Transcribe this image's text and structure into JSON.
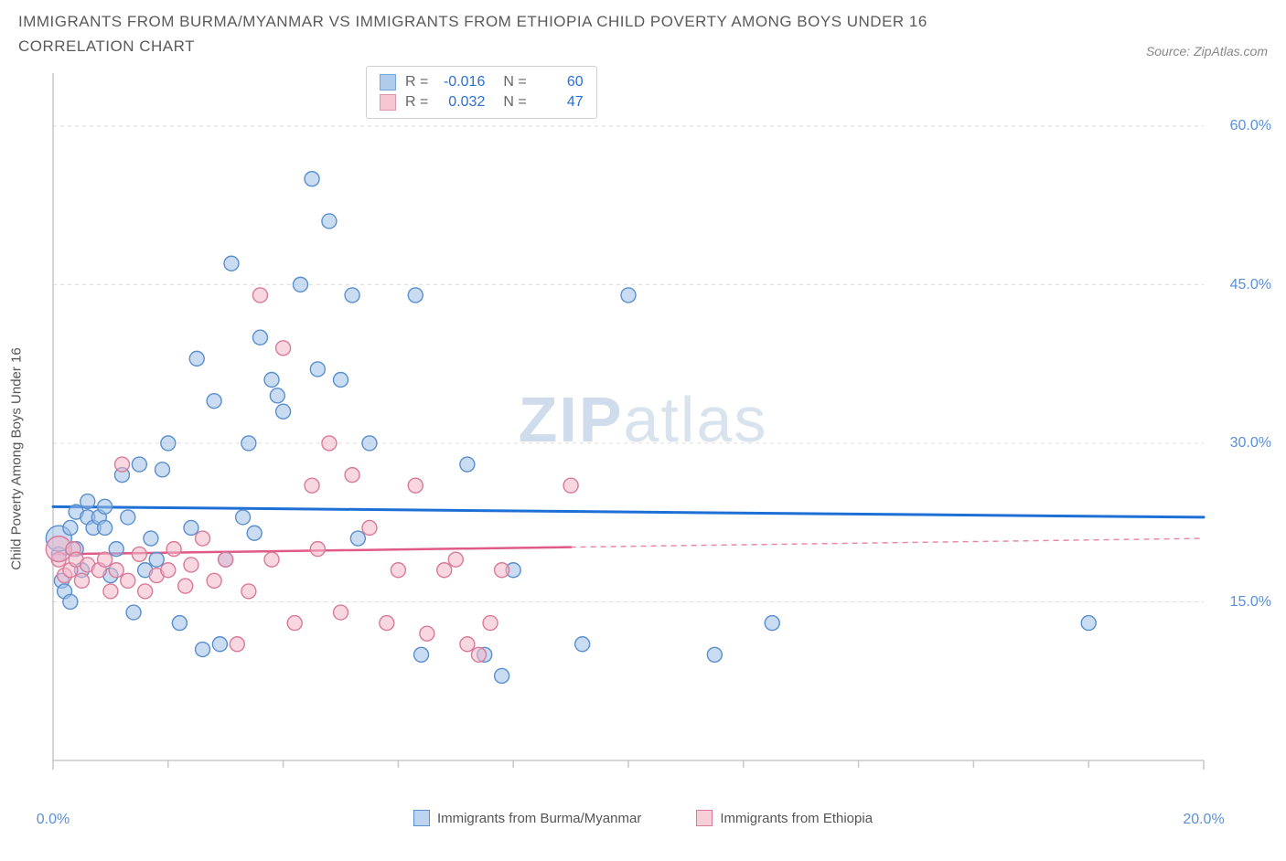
{
  "title": "IMMIGRANTS FROM BURMA/MYANMAR VS IMMIGRANTS FROM ETHIOPIA CHILD POVERTY AMONG BOYS UNDER 16 CORRELATION CHART",
  "source": "Source: ZipAtlas.com",
  "ylabel": "Child Poverty Among Boys Under 16",
  "watermark_a": "ZIP",
  "watermark_b": "atlas",
  "chart": {
    "type": "scatter",
    "xlim": [
      0,
      20
    ],
    "ylim": [
      0,
      65
    ],
    "yticks": [
      {
        "v": 15,
        "label": "15.0%"
      },
      {
        "v": 30,
        "label": "30.0%"
      },
      {
        "v": 45,
        "label": "45.0%"
      },
      {
        "v": 60,
        "label": "60.0%"
      }
    ],
    "xticks": [
      {
        "v": 0,
        "label": "0.0%"
      },
      {
        "v": 20,
        "label": "20.0%"
      }
    ],
    "xticks_minor": [
      2,
      4,
      6,
      8,
      10,
      12,
      14,
      16,
      18
    ],
    "grid_color": "#dcdcdc",
    "axis_color": "#c8c8c8",
    "background": "#ffffff",
    "marker_radius": 8,
    "marker_radius_large": 14,
    "series": [
      {
        "name": "Immigrants from Burma/Myanmar",
        "fill": "#9cc0e8",
        "stroke": "#5a8fce",
        "fill_opacity": 0.55,
        "trend": {
          "y0": 24.0,
          "y1": 23.0,
          "color": "#1e6fd6",
          "width": 3,
          "solid_until_x": 20
        },
        "R_label": "R =",
        "R": "-0.016",
        "N_label": "N =",
        "N": "60",
        "points": [
          [
            0.1,
            19.5
          ],
          [
            0.1,
            21,
            "L"
          ],
          [
            0.15,
            17
          ],
          [
            0.2,
            16
          ],
          [
            0.3,
            15
          ],
          [
            0.3,
            22
          ],
          [
            0.4,
            20
          ],
          [
            0.4,
            23.5
          ],
          [
            0.5,
            18
          ],
          [
            0.6,
            23
          ],
          [
            0.6,
            24.5
          ],
          [
            0.7,
            22
          ],
          [
            0.8,
            23
          ],
          [
            0.9,
            24
          ],
          [
            0.9,
            22
          ],
          [
            1.0,
            17.5
          ],
          [
            1.1,
            20
          ],
          [
            1.2,
            27
          ],
          [
            1.3,
            23
          ],
          [
            1.4,
            14
          ],
          [
            1.5,
            28
          ],
          [
            1.6,
            18
          ],
          [
            1.7,
            21
          ],
          [
            1.8,
            19
          ],
          [
            1.9,
            27.5
          ],
          [
            2.0,
            30
          ],
          [
            2.2,
            13
          ],
          [
            2.4,
            22
          ],
          [
            2.5,
            38
          ],
          [
            2.6,
            10.5
          ],
          [
            2.8,
            34
          ],
          [
            2.9,
            11
          ],
          [
            3.0,
            19
          ],
          [
            3.1,
            47
          ],
          [
            3.3,
            23
          ],
          [
            3.4,
            30
          ],
          [
            3.5,
            21.5
          ],
          [
            3.6,
            40
          ],
          [
            3.8,
            36
          ],
          [
            3.9,
            34.5
          ],
          [
            4.0,
            33
          ],
          [
            4.3,
            45
          ],
          [
            4.5,
            55
          ],
          [
            4.6,
            37
          ],
          [
            4.8,
            51
          ],
          [
            5.0,
            36
          ],
          [
            5.2,
            44
          ],
          [
            5.3,
            21
          ],
          [
            5.5,
            30
          ],
          [
            6.3,
            44
          ],
          [
            6.4,
            10
          ],
          [
            7.2,
            28
          ],
          [
            7.5,
            10
          ],
          [
            7.8,
            8
          ],
          [
            8.0,
            18
          ],
          [
            9.2,
            11
          ],
          [
            10.0,
            44
          ],
          [
            11.5,
            10
          ],
          [
            12.5,
            13
          ],
          [
            18.0,
            13
          ]
        ]
      },
      {
        "name": "Immigrants from Ethiopia",
        "fill": "#f3b7c8",
        "stroke": "#d97a98",
        "fill_opacity": 0.55,
        "trend": {
          "y0": 19.5,
          "y1": 21.0,
          "color": "#e05a87",
          "width": 2.5,
          "solid_until_x": 9.0
        },
        "R_label": "R =",
        "R": "0.032",
        "N_label": "N =",
        "N": "47",
        "points": [
          [
            0.1,
            19
          ],
          [
            0.1,
            20,
            "L"
          ],
          [
            0.2,
            17.5
          ],
          [
            0.3,
            18
          ],
          [
            0.35,
            20
          ],
          [
            0.4,
            19
          ],
          [
            0.5,
            17
          ],
          [
            0.6,
            18.5
          ],
          [
            0.8,
            18
          ],
          [
            0.9,
            19
          ],
          [
            1.0,
            16
          ],
          [
            1.1,
            18
          ],
          [
            1.2,
            28
          ],
          [
            1.3,
            17
          ],
          [
            1.5,
            19.5
          ],
          [
            1.6,
            16
          ],
          [
            1.8,
            17.5
          ],
          [
            2.0,
            18
          ],
          [
            2.1,
            20
          ],
          [
            2.3,
            16.5
          ],
          [
            2.4,
            18.5
          ],
          [
            2.6,
            21
          ],
          [
            2.8,
            17
          ],
          [
            3.0,
            19
          ],
          [
            3.2,
            11
          ],
          [
            3.4,
            16
          ],
          [
            3.6,
            44
          ],
          [
            3.8,
            19
          ],
          [
            4.0,
            39
          ],
          [
            4.2,
            13
          ],
          [
            4.5,
            26
          ],
          [
            4.6,
            20
          ],
          [
            4.8,
            30
          ],
          [
            5.0,
            14
          ],
          [
            5.2,
            27
          ],
          [
            5.5,
            22
          ],
          [
            5.8,
            13
          ],
          [
            6.0,
            18
          ],
          [
            6.3,
            26
          ],
          [
            6.5,
            12
          ],
          [
            6.8,
            18
          ],
          [
            7.0,
            19
          ],
          [
            7.2,
            11
          ],
          [
            7.4,
            10
          ],
          [
            7.6,
            13
          ],
          [
            7.8,
            18
          ],
          [
            9.0,
            26
          ]
        ]
      }
    ]
  },
  "bottom_legend": [
    {
      "label": "Immigrants from Burma/Myanmar",
      "fill": "#bcd4ef",
      "stroke": "#5a8fce"
    },
    {
      "label": "Immigrants from Ethiopia",
      "fill": "#f6cfd9",
      "stroke": "#d97a98"
    }
  ]
}
